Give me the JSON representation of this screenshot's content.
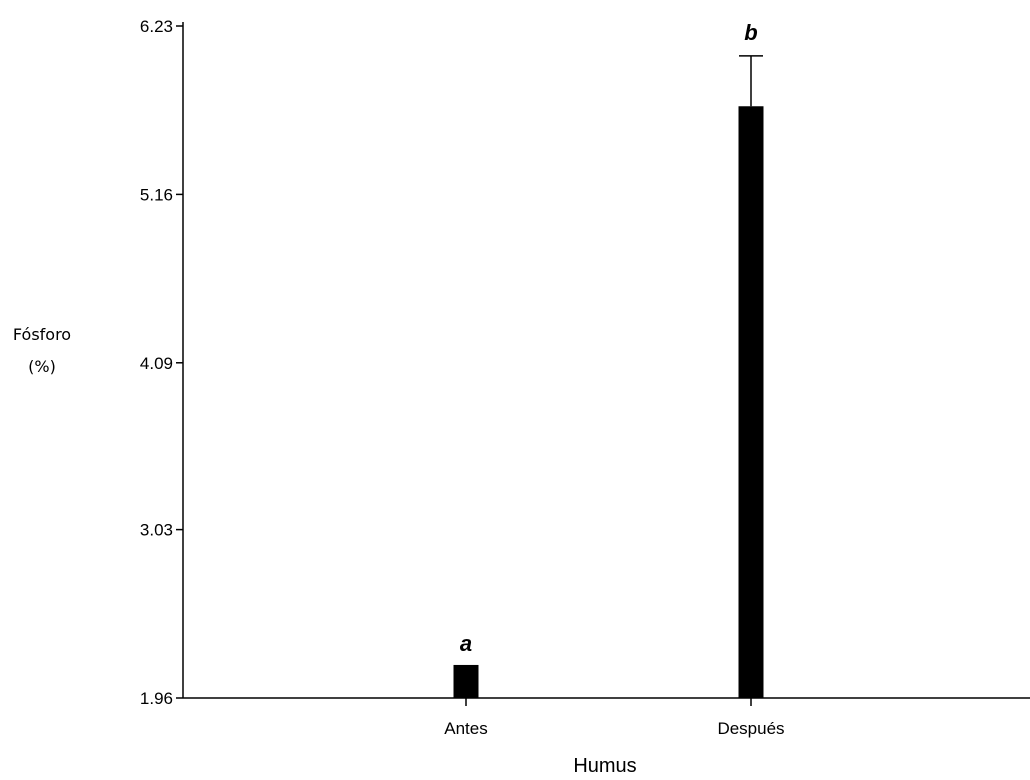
{
  "chart_data": {
    "type": "bar",
    "title": "",
    "xlabel": "Humus",
    "ylabel_lines": [
      "Fósforo",
      "(%)"
    ],
    "categories": [
      "Antes",
      "Después"
    ],
    "values": [
      2.17,
      5.72
    ],
    "error_upper": [
      2.17,
      6.04
    ],
    "significance_labels": [
      "a",
      "b"
    ],
    "yticks": [
      "1.96",
      "3.03",
      "4.09",
      "5.16",
      "6.23"
    ],
    "ylim": [
      1.96,
      6.23
    ],
    "grid": false,
    "bar_color": "#000000"
  }
}
